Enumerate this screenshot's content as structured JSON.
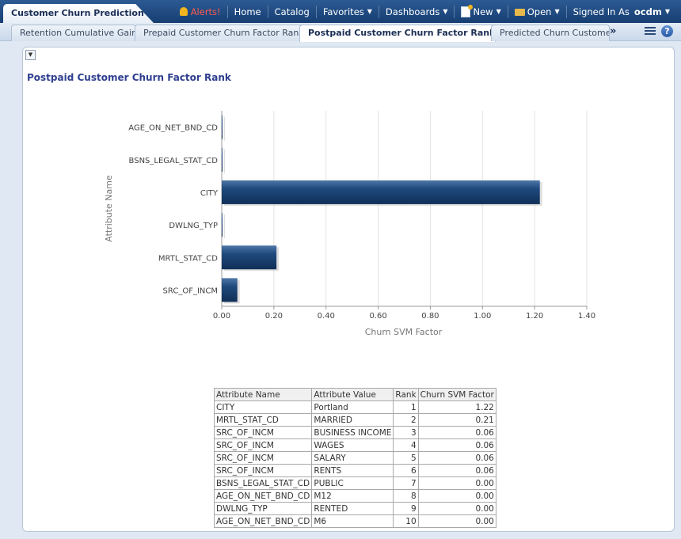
{
  "header": {
    "app_title": "Customer Churn Prediction",
    "alerts_label": "Alerts!",
    "home_label": "Home",
    "catalog_label": "Catalog",
    "favorites_label": "Favorites",
    "dashboards_label": "Dashboards",
    "new_label": "New",
    "open_label": "Open",
    "signed_in_label": "Signed In As",
    "user": "ocdm"
  },
  "tabs": [
    {
      "label": "Retention Cumulative Gain",
      "active": false
    },
    {
      "label": "Prepaid Customer Churn Factor Rank",
      "active": false
    },
    {
      "label": "Postpaid Customer Churn Factor Rank",
      "active": true
    },
    {
      "label": "Predicted Churn Customer R",
      "active": false
    }
  ],
  "tabs_more": "»",
  "help_glyph": "?",
  "report": {
    "title": "Postpaid Customer Churn Factor Rank"
  },
  "chart_data": {
    "type": "bar",
    "orientation": "horizontal",
    "xlabel": "Churn SVM Factor",
    "ylabel": "Attribute Name",
    "categories": [
      "AGE_ON_NET_BND_CD",
      "BSNS_LEGAL_STAT_CD",
      "CITY",
      "DWLNG_TYP",
      "MRTL_STAT_CD",
      "SRC_OF_INCM"
    ],
    "values": [
      0.0,
      0.0,
      1.22,
      0.0,
      0.21,
      0.06
    ],
    "xlim": [
      0,
      1.4
    ],
    "ticks": [
      "0.00",
      "0.20",
      "0.40",
      "0.60",
      "0.80",
      "1.00",
      "1.20",
      "1.40"
    ],
    "bar_color": "#1f4a7d",
    "grid": true
  },
  "table": {
    "headers": [
      "Attribute Name",
      "Attribute Value",
      "Rank",
      "Churn SVM Factor"
    ],
    "rows": [
      [
        "CITY",
        "Portland",
        "1",
        "1.22"
      ],
      [
        "MRTL_STAT_CD",
        "MARRIED",
        "2",
        "0.21"
      ],
      [
        "SRC_OF_INCM",
        "BUSINESS INCOME",
        "3",
        "0.06"
      ],
      [
        "SRC_OF_INCM",
        "WAGES",
        "4",
        "0.06"
      ],
      [
        "SRC_OF_INCM",
        "SALARY",
        "5",
        "0.06"
      ],
      [
        "SRC_OF_INCM",
        "RENTS",
        "6",
        "0.06"
      ],
      [
        "BSNS_LEGAL_STAT_CD",
        "PUBLIC",
        "7",
        "0.00"
      ],
      [
        "AGE_ON_NET_BND_CD",
        "M12",
        "8",
        "0.00"
      ],
      [
        "DWLNG_TYP",
        "RENTED",
        "9",
        "0.00"
      ],
      [
        "AGE_ON_NET_BND_CD",
        "M6",
        "10",
        "0.00"
      ]
    ]
  }
}
